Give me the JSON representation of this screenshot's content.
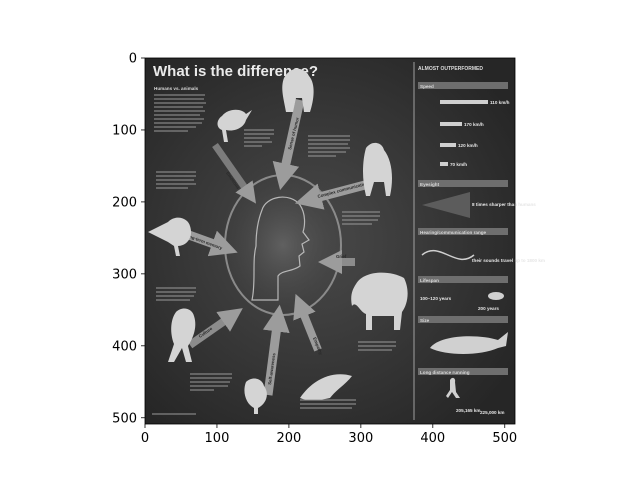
{
  "axes": {
    "x_ticks": [
      "0",
      "100",
      "200",
      "300",
      "400",
      "500"
    ],
    "y_ticks": [
      "0",
      "100",
      "200",
      "300",
      "400",
      "500"
    ]
  },
  "infographic": {
    "title": "What is the difference?",
    "intro_heading": "Humans vs. animals",
    "arrow_labels": [
      "Sense of humor",
      "Complex communication",
      "Long-term memory",
      "Emotions",
      "Culture",
      "Self-awareness",
      "Empathy",
      "Grief"
    ],
    "side_panel": {
      "header": "ALMOST OUTPERFORMED",
      "sections": [
        "Speed",
        "Eyesight",
        "Hearing/communication range",
        "Lifespan",
        "Size",
        "Long distance running"
      ],
      "values": {
        "speed_1": "110 km/h",
        "speed_2": "170 km/h",
        "speed_3": "120 km/h",
        "speed_4": "70 km/h",
        "eyesight": "8 times sharper than humans",
        "hearing": "their sounds travel up to 1800 km",
        "lifespan_1": "100–120 years",
        "lifespan_2": "200 years",
        "running_1": "205,165 km",
        "running_2": "225,000 km"
      }
    }
  },
  "colors": {
    "background": "#ffffff",
    "infographic_bg": "#3a3a3a",
    "panel_divider": "#bdbdbd",
    "arrow_fill": "#9c9c9c"
  }
}
